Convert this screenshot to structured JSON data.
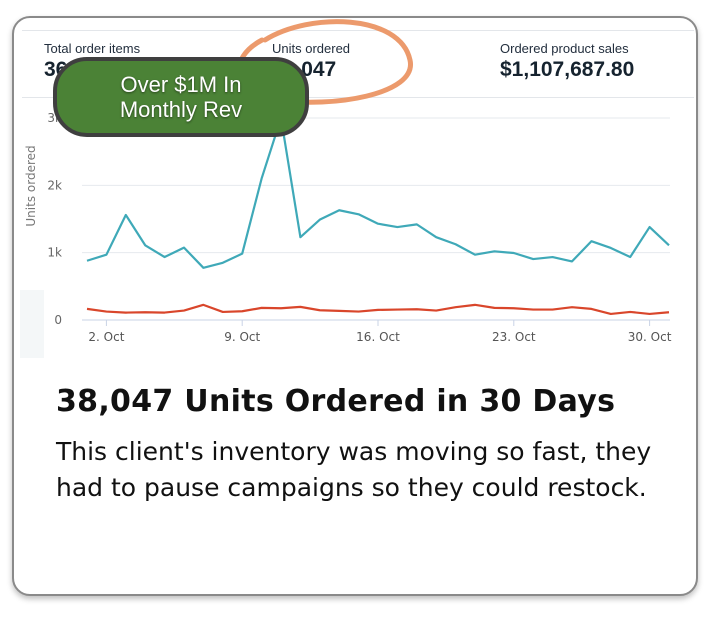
{
  "kpis": [
    {
      "label": "Total order items",
      "value": "36"
    },
    {
      "label": "Units ordered",
      "value": "38,047"
    },
    {
      "label": "Ordered product sales",
      "value": "$1,107,687.80"
    }
  ],
  "badge": {
    "line1": "Over $1M In",
    "line2": "Monthly Rev",
    "color": "#4b8236"
  },
  "headline": "38,047 Units Ordered in 30 Days",
  "paragraph": "This client's inventory was moving so fast, they had to pause campaigns so they could restock.",
  "chart_data": {
    "type": "line",
    "ylabel": "Units ordered",
    "ylim": [
      0,
      3000
    ],
    "yticks": [
      {
        "v": 0,
        "label": "0"
      },
      {
        "v": 1000,
        "label": "1k"
      },
      {
        "v": 2000,
        "label": "2k"
      },
      {
        "v": 3000,
        "label": "3k"
      }
    ],
    "xticks": [
      {
        "day": 2,
        "label": "2. Oct"
      },
      {
        "day": 9,
        "label": "9. Oct"
      },
      {
        "day": 16,
        "label": "16. Oct"
      },
      {
        "day": 23,
        "label": "23. Oct"
      },
      {
        "day": 30,
        "label": "30. Oct"
      }
    ],
    "x_days": [
      1,
      2,
      3,
      4,
      5,
      6,
      7,
      8,
      9,
      10,
      11,
      12,
      13,
      14,
      15,
      16,
      17,
      18,
      19,
      20,
      21,
      22,
      23,
      24,
      25,
      26,
      27,
      28,
      29,
      30,
      31
    ],
    "grid": true,
    "series": [
      {
        "color": "#3fa9b8",
        "values": [
          880,
          970,
          1560,
          1110,
          935,
          1075,
          775,
          850,
          985,
          2100,
          3000,
          1230,
          1490,
          1630,
          1570,
          1430,
          1380,
          1420,
          1230,
          1125,
          970,
          1020,
          995,
          905,
          935,
          870,
          1170,
          1070,
          935,
          1380,
          1110
        ]
      },
      {
        "color": "#d9462b",
        "values": [
          165,
          125,
          110,
          115,
          110,
          140,
          225,
          120,
          130,
          180,
          175,
          195,
          145,
          135,
          125,
          150,
          155,
          160,
          140,
          190,
          225,
          180,
          175,
          155,
          155,
          190,
          165,
          90,
          120,
          90,
          115
        ]
      }
    ]
  }
}
